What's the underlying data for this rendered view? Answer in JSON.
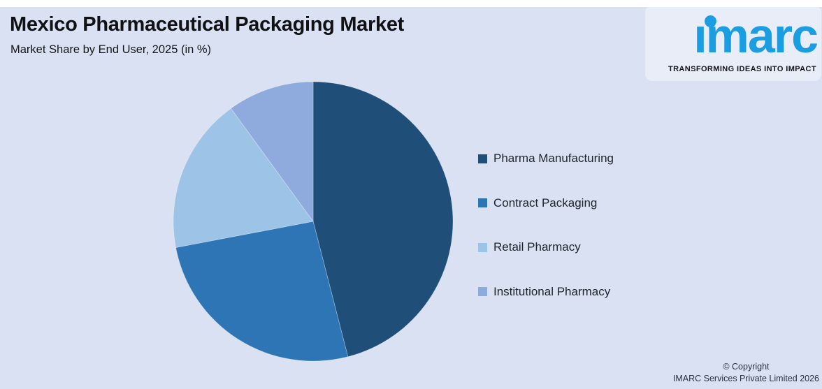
{
  "page": {
    "background_color": "#D9E1F2"
  },
  "header": {
    "title": "Mexico Pharmaceutical Packaging Market",
    "subtitle": "Market Share by End User, 2025 (in %)"
  },
  "logo": {
    "wordmark": "ımarc",
    "tagline": "TRANSFORMING IDEAS INTO IMPACT",
    "brand_color": "#1B9DE2"
  },
  "chart_data": {
    "type": "pie",
    "title": "Mexico Pharmaceutical Packaging Market",
    "subtitle": "Market Share by End User, 2025 (in %)",
    "unit": "%",
    "categories": [
      "Pharma Manufacturing",
      "Contract Packaging",
      "Retail Pharmacy",
      "Institutional Pharmacy"
    ],
    "values": [
      46,
      26,
      18,
      10
    ],
    "colors": [
      "#1F4E79",
      "#2E75B6",
      "#9DC3E6",
      "#8FAADC"
    ],
    "start_angle_deg": 0,
    "direction": "clockwise",
    "legend_position": "right",
    "data_labels": false
  },
  "legend": {
    "items": [
      {
        "label": "Pharma Manufacturing",
        "color": "#1F4E79"
      },
      {
        "label": "Contract Packaging",
        "color": "#2E75B6"
      },
      {
        "label": "Retail Pharmacy",
        "color": "#9DC3E6"
      },
      {
        "label": "Institutional Pharmacy",
        "color": "#8FAADC"
      }
    ]
  },
  "footer": {
    "copyright_line1": "© Copyright",
    "copyright_line2": "IMARC Services Private Limited 2026"
  }
}
